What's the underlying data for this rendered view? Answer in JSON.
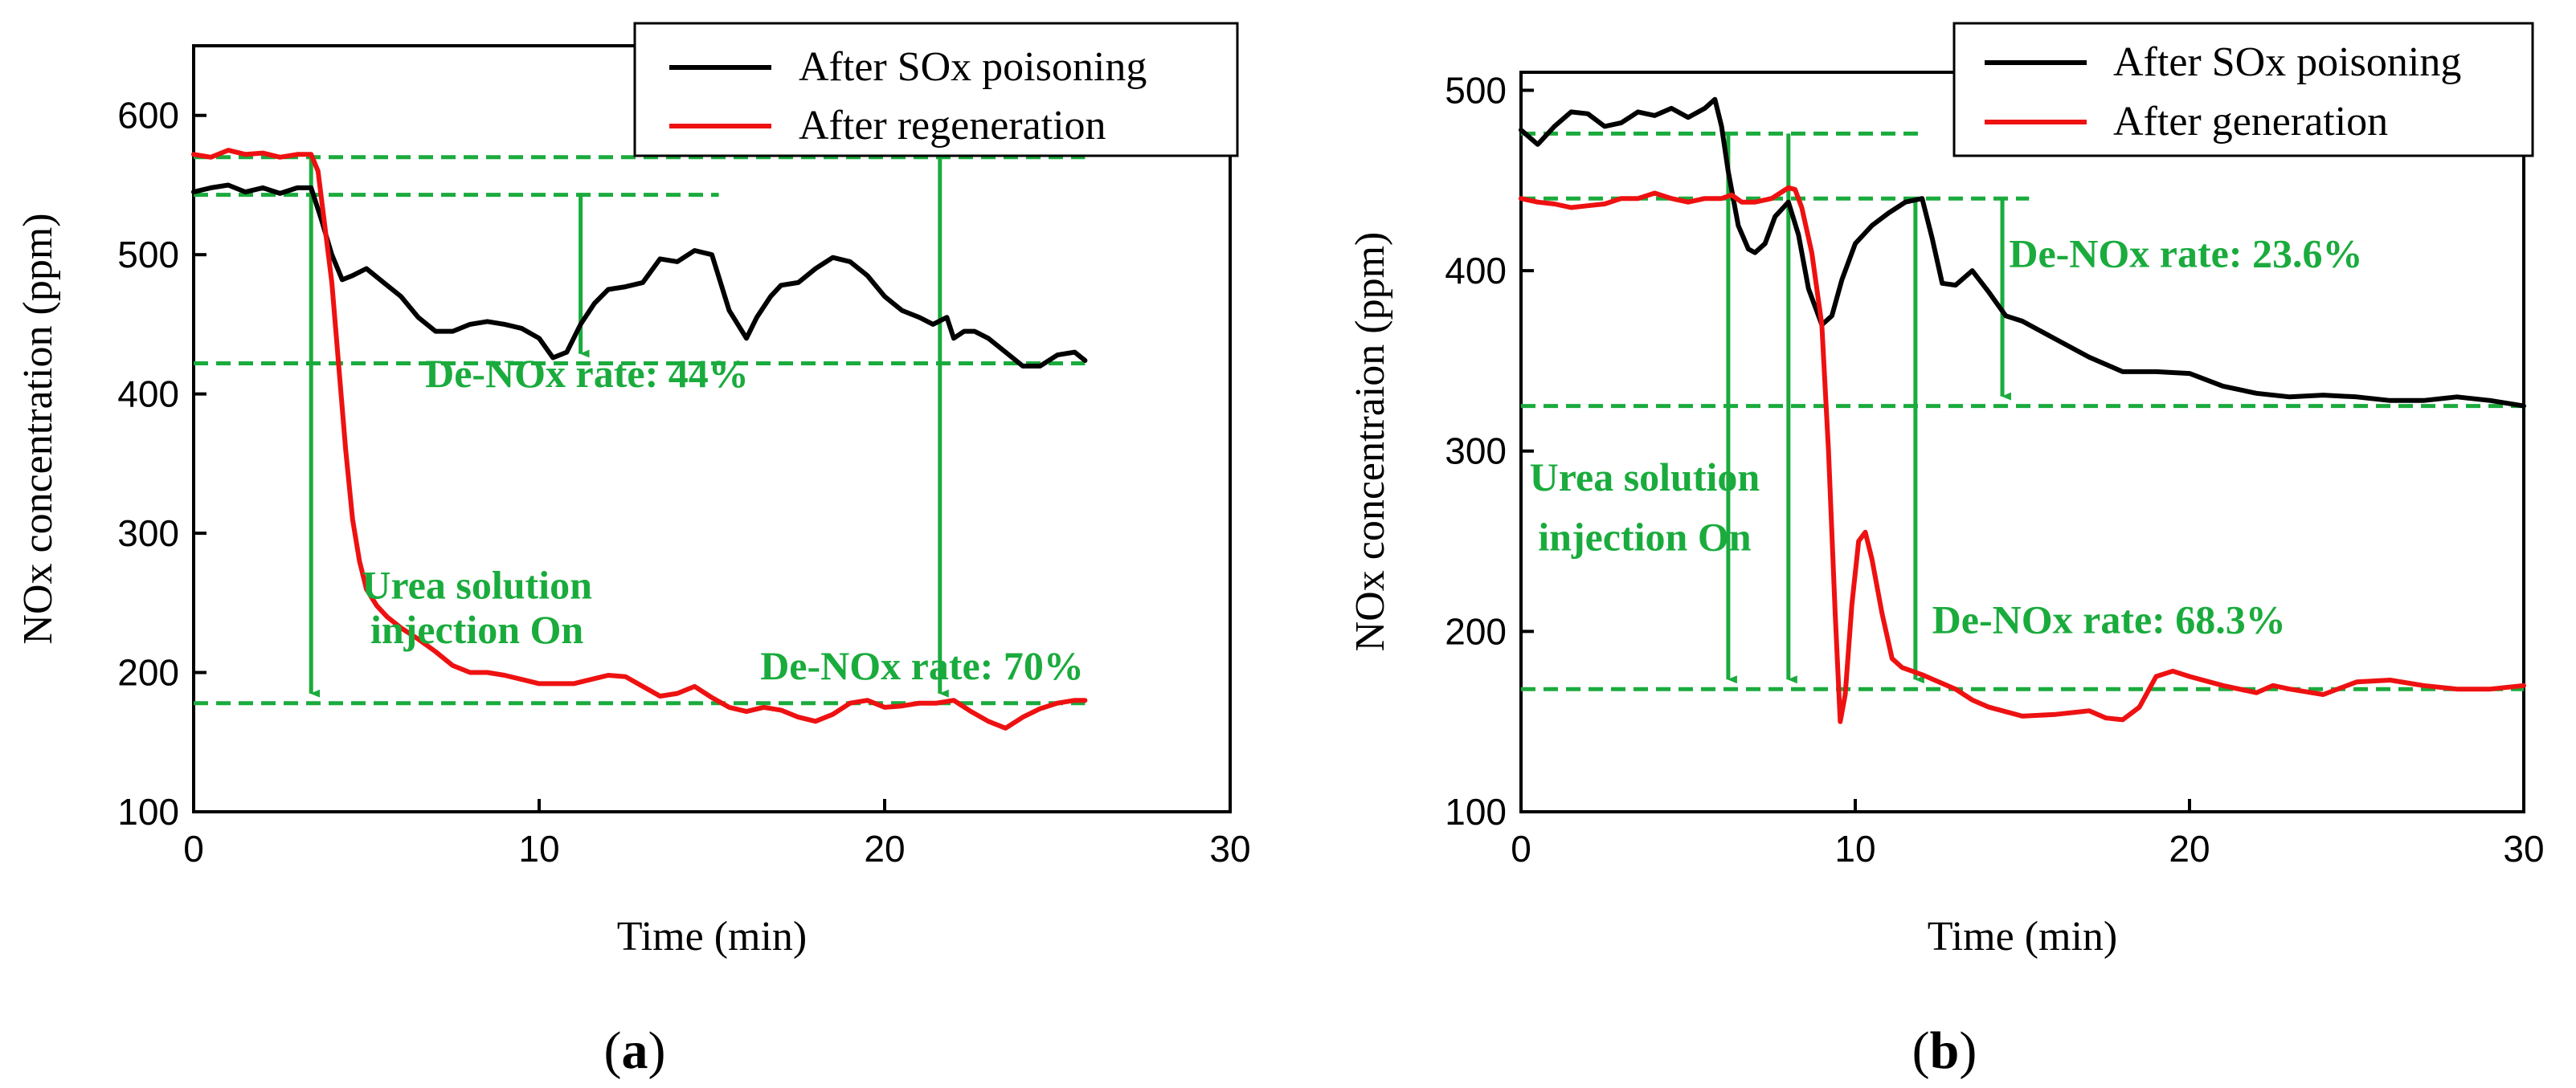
{
  "colors": {
    "series1": "#000000",
    "series2": "#ee1111",
    "annotation": "#1aab3d"
  },
  "chart_data": [
    {
      "panel": "a",
      "panel_label": {
        "open": "(",
        "letter": "a",
        "close": ")"
      },
      "type": "line",
      "xlabel": "Time (min)",
      "ylabel": "NOx concentration (ppm)",
      "xlim": [
        0,
        30
      ],
      "ylim": [
        100,
        650
      ],
      "xticks": [
        0,
        10,
        20,
        30
      ],
      "yticks": [
        100,
        200,
        300,
        400,
        500,
        600
      ],
      "legend_position": "top-right",
      "series": [
        {
          "name": "After SOx poisoning",
          "color": "#000000",
          "x": [
            0,
            0.5,
            1,
            1.5,
            2,
            2.5,
            3,
            3.4,
            3.7,
            4.0,
            4.3,
            4.6,
            5,
            5.5,
            6,
            6.5,
            7,
            7.5,
            8,
            8.5,
            9,
            9.5,
            10,
            10.4,
            10.8,
            11.2,
            11.6,
            12,
            12.5,
            13,
            13.5,
            14,
            14.5,
            15,
            15.5,
            16,
            16.3,
            16.7,
            17,
            17.5,
            18,
            18.5,
            19,
            19.5,
            20,
            20.5,
            21,
            21.4,
            21.8,
            22,
            22.3,
            22.6,
            23,
            23.5,
            24,
            24.5,
            25,
            25.5,
            25.8
          ],
          "values": [
            545,
            548,
            550,
            545,
            548,
            544,
            548,
            548,
            525,
            500,
            482,
            485,
            490,
            480,
            470,
            455,
            445,
            445,
            450,
            452,
            450,
            447,
            440,
            426,
            430,
            450,
            465,
            475,
            477,
            480,
            497,
            495,
            503,
            500,
            460,
            440,
            455,
            470,
            478,
            480,
            490,
            498,
            495,
            485,
            470,
            460,
            455,
            450,
            455,
            440,
            445,
            445,
            440,
            430,
            420,
            420,
            428,
            430,
            424
          ]
        },
        {
          "name": "After regeneration",
          "color": "#ee1111",
          "x": [
            0,
            0.5,
            1,
            1.5,
            2,
            2.5,
            3,
            3.4,
            3.6,
            3.8,
            4.0,
            4.2,
            4.4,
            4.6,
            4.8,
            5,
            5.3,
            5.6,
            6,
            6.5,
            7,
            7.5,
            8,
            8.5,
            9,
            9.5,
            10,
            10.5,
            11,
            11.5,
            12,
            12.5,
            13,
            13.5,
            14,
            14.5,
            15,
            15.5,
            16,
            16.5,
            17,
            17.5,
            18,
            18.5,
            19,
            19.5,
            20,
            20.5,
            21,
            21.5,
            22,
            22.5,
            23,
            23.5,
            24,
            24.5,
            25,
            25.5,
            25.8
          ],
          "values": [
            572,
            570,
            575,
            572,
            573,
            570,
            572,
            572,
            560,
            520,
            480,
            420,
            360,
            310,
            280,
            260,
            248,
            240,
            232,
            224,
            215,
            205,
            200,
            200,
            198,
            195,
            192,
            192,
            192,
            195,
            198,
            197,
            190,
            183,
            185,
            190,
            182,
            175,
            172,
            175,
            173,
            168,
            165,
            170,
            178,
            180,
            175,
            176,
            178,
            178,
            180,
            172,
            165,
            160,
            168,
            174,
            178,
            180,
            180
          ]
        }
      ],
      "guides": [
        {
          "kind": "hline",
          "y": 570,
          "x": [
            0,
            25.8
          ]
        },
        {
          "kind": "hline",
          "y": 543,
          "x": [
            0,
            15.2
          ]
        },
        {
          "kind": "hline",
          "y": 422,
          "x": [
            0,
            25.8
          ]
        },
        {
          "kind": "hline",
          "y": 178,
          "x": [
            0,
            25.8
          ]
        },
        {
          "kind": "arrow",
          "x": 3.4,
          "y1": 570,
          "y2": 178
        },
        {
          "kind": "arrow",
          "x": 11.2,
          "y1": 543,
          "y2": 422
        },
        {
          "kind": "arrow",
          "x": 21.6,
          "y1": 570,
          "y2": 178
        }
      ],
      "annotations": [
        {
          "text": "De-NOx rate: 44%",
          "x": 6.7,
          "y": 405,
          "anchor": "start"
        },
        {
          "text": "Urea solution",
          "x": 8.2,
          "y": 253,
          "anchor": "middle"
        },
        {
          "text": "injection On",
          "x": 8.2,
          "y": 221,
          "anchor": "middle"
        },
        {
          "text": "De-NOx rate: 70%",
          "x": 16.4,
          "y": 195,
          "anchor": "start"
        }
      ]
    },
    {
      "panel": "b",
      "panel_label": {
        "open": "(",
        "letter": "b",
        "close": ")"
      },
      "type": "line",
      "xlabel": "Time (min)",
      "ylabel": "NOx concentraion (ppm)",
      "xlim": [
        0,
        30
      ],
      "ylim": [
        100,
        510
      ],
      "xticks": [
        0,
        10,
        20,
        30
      ],
      "yticks": [
        100,
        200,
        300,
        400,
        500
      ],
      "legend_position": "top-right",
      "series": [
        {
          "name": "After SOx poisoning",
          "color": "#000000",
          "x": [
            0,
            0.5,
            1,
            1.5,
            2,
            2.5,
            3,
            3.5,
            4,
            4.5,
            5,
            5.5,
            5.8,
            6.0,
            6.2,
            6.5,
            6.8,
            7.0,
            7.3,
            7.6,
            8.0,
            8.3,
            8.6,
            9.0,
            9.3,
            9.6,
            10.0,
            10.5,
            11.0,
            11.5,
            12.0,
            12.3,
            12.6,
            13.0,
            13.5,
            14.0,
            14.5,
            15,
            16,
            17,
            18,
            19,
            20,
            21,
            22,
            23,
            24,
            25,
            26,
            27,
            28,
            29,
            30
          ],
          "values": [
            478,
            470,
            480,
            488,
            487,
            480,
            482,
            488,
            486,
            490,
            485,
            490,
            495,
            480,
            455,
            425,
            412,
            410,
            415,
            430,
            438,
            420,
            390,
            370,
            375,
            395,
            415,
            425,
            432,
            438,
            440,
            418,
            393,
            392,
            400,
            388,
            375,
            372,
            362,
            352,
            344,
            344,
            343,
            336,
            332,
            330,
            331,
            330,
            328,
            328,
            330,
            328,
            325
          ]
        },
        {
          "name": "After generation",
          "color": "#ee1111",
          "x": [
            0,
            0.5,
            1,
            1.5,
            2,
            2.5,
            3,
            3.5,
            4,
            4.5,
            5,
            5.5,
            6,
            6.3,
            6.6,
            7,
            7.5,
            8,
            8.2,
            8.4,
            8.7,
            9.0,
            9.2,
            9.4,
            9.55,
            9.7,
            9.9,
            10.1,
            10.3,
            10.5,
            10.8,
            11.1,
            11.4,
            11.7,
            12.0,
            12.5,
            13,
            13.5,
            14,
            15,
            16,
            17,
            17.5,
            18,
            18.5,
            19,
            19.5,
            20,
            21,
            22,
            22.5,
            23,
            24,
            25,
            26,
            27,
            28,
            29,
            30
          ],
          "values": [
            440,
            438,
            437,
            435,
            436,
            437,
            440,
            440,
            443,
            440,
            438,
            440,
            440,
            442,
            438,
            438,
            440,
            446,
            445,
            435,
            410,
            370,
            300,
            210,
            150,
            165,
            215,
            250,
            255,
            240,
            210,
            185,
            180,
            178,
            176,
            172,
            168,
            162,
            158,
            153,
            154,
            156,
            152,
            151,
            158,
            175,
            178,
            175,
            170,
            166,
            170,
            168,
            165,
            172,
            173,
            170,
            168,
            168,
            170
          ]
        }
      ],
      "guides": [
        {
          "kind": "hline",
          "y": 476,
          "x": [
            0,
            12
          ]
        },
        {
          "kind": "hline",
          "y": 440,
          "x": [
            0,
            15.2
          ]
        },
        {
          "kind": "hline",
          "y": 325,
          "x": [
            0,
            30
          ]
        },
        {
          "kind": "hline",
          "y": 168,
          "x": [
            0,
            30
          ]
        },
        {
          "kind": "arrow",
          "x": 6.2,
          "y1": 476,
          "y2": 168
        },
        {
          "kind": "arrow",
          "x": 8.0,
          "y1": 476,
          "y2": 168
        },
        {
          "kind": "arrow",
          "x": 11.8,
          "y1": 440,
          "y2": 168
        },
        {
          "kind": "arrow",
          "x": 14.4,
          "y1": 440,
          "y2": 325
        }
      ],
      "annotations": [
        {
          "text": "De-NOx rate: 23.6%",
          "x": 14.6,
          "y": 402,
          "anchor": "start"
        },
        {
          "text": "Urea solution",
          "x": 3.7,
          "y": 278,
          "anchor": "middle"
        },
        {
          "text": "injection On",
          "x": 3.7,
          "y": 245,
          "anchor": "middle"
        },
        {
          "text": "De-NOx rate: 68.3%",
          "x": 12.3,
          "y": 199,
          "anchor": "start"
        }
      ]
    }
  ]
}
